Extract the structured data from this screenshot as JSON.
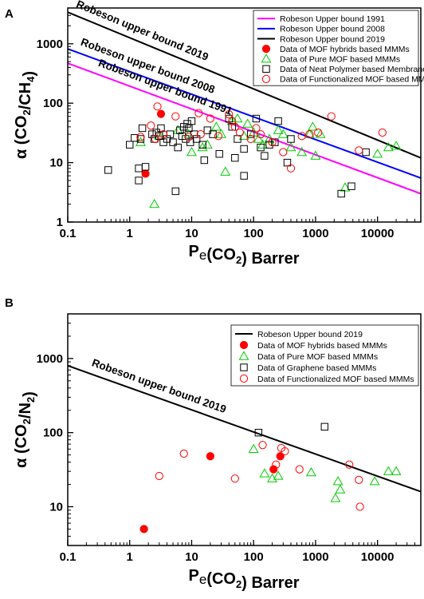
{
  "chart_data": [
    {
      "panel": "A",
      "type": "scatter",
      "xlabel": "Pe(CO2) Barrer",
      "ylabel": "α (CO2/CH4)",
      "xscale": "log",
      "yscale": "log",
      "xlim": [
        0.1,
        50000
      ],
      "ylim": [
        1,
        4000
      ],
      "xticks": [
        "0.1",
        "1",
        "10",
        "100",
        "1000",
        "10000"
      ],
      "yticks": [
        "1",
        "10",
        "100",
        "1000"
      ],
      "legend_position": "top-right",
      "lines": [
        {
          "name": "Robeson Upper bound 1991",
          "label": "Robeson upper bound 1991",
          "color": "#ff00ff",
          "points": [
            [
              0.1,
              470
            ],
            [
              50000,
              3.0
            ]
          ]
        },
        {
          "name": "Robeson Upper bound 2008",
          "label": "Robeson upper bound 2008",
          "color": "#0000ff",
          "points": [
            [
              0.1,
              820
            ],
            [
              50000,
              5.5
            ]
          ]
        },
        {
          "name": "Robeson Upper bound 2019",
          "label": "Robeson upper bound 2019",
          "color": "#000000",
          "points": [
            [
              0.1,
              3400
            ],
            [
              50000,
              12
            ]
          ]
        }
      ],
      "series": [
        {
          "name": "Data of MOF hybrids based MMMs",
          "marker": "filled-circle",
          "color": "#ff0000",
          "points": [
            [
              1.8,
              6.5
            ],
            [
              3.2,
              66
            ]
          ]
        },
        {
          "name": "Data of Pure MOF based MMMs",
          "marker": "triangle",
          "color": "#00cc00",
          "points": [
            [
              2.5,
              2
            ],
            [
              1.5,
              22
            ],
            [
              3,
              28
            ],
            [
              6,
              35
            ],
            [
              9,
              30
            ],
            [
              10,
              15
            ],
            [
              15,
              18
            ],
            [
              18,
              20
            ],
            [
              25,
              40
            ],
            [
              30,
              30
            ],
            [
              35,
              7
            ],
            [
              45,
              50
            ],
            [
              55,
              55
            ],
            [
              70,
              28
            ],
            [
              80,
              45
            ],
            [
              100,
              32
            ],
            [
              120,
              25
            ],
            [
              140,
              20
            ],
            [
              180,
              25
            ],
            [
              250,
              35
            ],
            [
              300,
              30
            ],
            [
              400,
              18
            ],
            [
              600,
              15
            ],
            [
              800,
              30
            ],
            [
              900,
              40
            ],
            [
              1000,
              13
            ],
            [
              1200,
              30
            ],
            [
              3000,
              3.8
            ],
            [
              10000,
              14
            ],
            [
              15000,
              18
            ],
            [
              20000,
              19
            ]
          ]
        },
        {
          "name": "Data of Neat Polymer based Membranes",
          "marker": "square",
          "color": "#000000",
          "points": [
            [
              0.45,
              7.5
            ],
            [
              1.0,
              20
            ],
            [
              1.2,
              26
            ],
            [
              1.4,
              5
            ],
            [
              1.4,
              8
            ],
            [
              1.5,
              25
            ],
            [
              1.6,
              38
            ],
            [
              1.8,
              8.5
            ],
            [
              2.3,
              30
            ],
            [
              2.5,
              25
            ],
            [
              2.7,
              32
            ],
            [
              3.0,
              28
            ],
            [
              3.2,
              38
            ],
            [
              3.5,
              22
            ],
            [
              4.0,
              25
            ],
            [
              4.5,
              30
            ],
            [
              5.0,
              22
            ],
            [
              5.5,
              3.3
            ],
            [
              6.0,
              18
            ],
            [
              6.5,
              35
            ],
            [
              7.0,
              28
            ],
            [
              7.5,
              40
            ],
            [
              8.0,
              25
            ],
            [
              8.5,
              45
            ],
            [
              9.0,
              38
            ],
            [
              9.5,
              22
            ],
            [
              10,
              50
            ],
            [
              11,
              30
            ],
            [
              12,
              25
            ],
            [
              15,
              20
            ],
            [
              16,
              11
            ],
            [
              18,
              35
            ],
            [
              22,
              30
            ],
            [
              28,
              14
            ],
            [
              40,
              55
            ],
            [
              45,
              40
            ],
            [
              50,
              12
            ],
            [
              55,
              25
            ],
            [
              70,
              6
            ],
            [
              70,
              17
            ],
            [
              90,
              30
            ],
            [
              110,
              55
            ],
            [
              130,
              18
            ],
            [
              150,
              13
            ],
            [
              180,
              20
            ],
            [
              220,
              22
            ],
            [
              250,
              50
            ],
            [
              350,
              10
            ],
            [
              400,
              25
            ],
            [
              2600,
              3
            ],
            [
              3800,
              4
            ],
            [
              6500,
              15
            ]
          ]
        },
        {
          "name": "Data of Functionalized MOF based MMMs",
          "marker": "open-circle",
          "color": "#ff0000",
          "points": [
            [
              1.5,
              27
            ],
            [
              2.2,
              42
            ],
            [
              2.6,
              25
            ],
            [
              2.8,
              88
            ],
            [
              3.5,
              30
            ],
            [
              5.5,
              60
            ],
            [
              9,
              27
            ],
            [
              13,
              68
            ],
            [
              14,
              30
            ],
            [
              20,
              55
            ],
            [
              27,
              28
            ],
            [
              40,
              65
            ],
            [
              45,
              50
            ],
            [
              50,
              40
            ],
            [
              60,
              32
            ],
            [
              90,
              25
            ],
            [
              110,
              38
            ],
            [
              130,
              30
            ],
            [
              200,
              22
            ],
            [
              300,
              15
            ],
            [
              400,
              8
            ],
            [
              600,
              28
            ],
            [
              800,
              30
            ],
            [
              1100,
              32
            ],
            [
              1800,
              60
            ],
            [
              5000,
              16
            ],
            [
              12000,
              32
            ]
          ]
        }
      ]
    },
    {
      "panel": "B",
      "type": "scatter",
      "xlabel": "Pe(CO2) Barrer",
      "ylabel": "α (CO2/N2)",
      "xscale": "log",
      "yscale": "log",
      "xlim": [
        0.1,
        50000
      ],
      "ylim": [
        3,
        4000
      ],
      "xticks": [
        "0.1",
        "1",
        "10",
        "100",
        "1000",
        "10000"
      ],
      "yticks": [
        "10",
        "100",
        "1000"
      ],
      "legend_position": "top-right",
      "lines": [
        {
          "name": "Robeson Upper bound 2019",
          "label": "Robeson upper bound 2019",
          "color": "#000000",
          "points": [
            [
              0.1,
              800
            ],
            [
              50000,
              16
            ]
          ]
        }
      ],
      "series": [
        {
          "name": "Data of MOF hybrids based MMMs",
          "marker": "filled-circle",
          "color": "#ff0000",
          "points": [
            [
              1.7,
              5
            ],
            [
              20,
              48
            ],
            [
              210,
              32
            ],
            [
              270,
              48
            ]
          ]
        },
        {
          "name": "Data of Pure MOF based MMMs",
          "marker": "triangle",
          "color": "#00cc00",
          "points": [
            [
              100,
              60
            ],
            [
              150,
              28
            ],
            [
              200,
              24
            ],
            [
              250,
              26
            ],
            [
              850,
              29
            ],
            [
              2100,
              13
            ],
            [
              2300,
              22
            ],
            [
              2500,
              17
            ],
            [
              9000,
              22
            ],
            [
              15000,
              30
            ],
            [
              20000,
              30
            ]
          ]
        },
        {
          "name": "Data of Graphene based MMMs",
          "marker": "square",
          "color": "#000000",
          "points": [
            [
              120,
              100
            ],
            [
              1400,
              120
            ]
          ]
        },
        {
          "name": "Data of Functionalized MOF based MMMs",
          "marker": "open-circle",
          "color": "#ff0000",
          "points": [
            [
              3,
              26
            ],
            [
              7.5,
              52
            ],
            [
              50,
              24
            ],
            [
              140,
              68
            ],
            [
              230,
              37
            ],
            [
              280,
              62
            ],
            [
              320,
              56
            ],
            [
              550,
              32
            ],
            [
              3500,
              37
            ],
            [
              5000,
              23
            ],
            [
              5200,
              10
            ]
          ]
        }
      ]
    }
  ]
}
